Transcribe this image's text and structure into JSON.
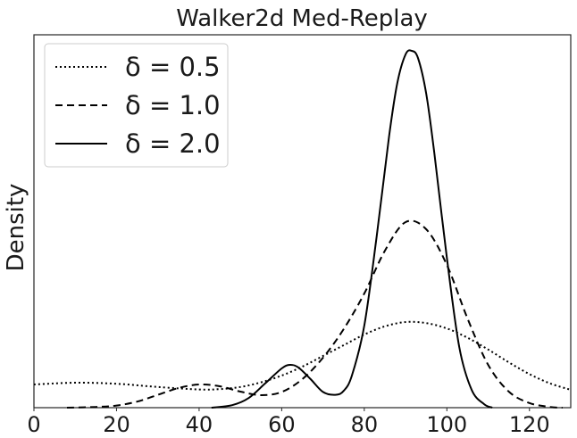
{
  "chart_data": {
    "type": "line",
    "title": "Walker2d Med-Replay",
    "xlabel": "",
    "ylabel": "Density",
    "xlim": [
      0,
      130
    ],
    "ylim": [
      0,
      1.0
    ],
    "xticks": [
      0,
      20,
      40,
      60,
      80,
      100,
      120
    ],
    "grid": false,
    "legend_position": "top-left",
    "colors": {
      "line": "#000000",
      "frame": "#262626",
      "legend_border": "#cccccc"
    },
    "series": [
      {
        "name": "δ = 0.5",
        "style": "dotted",
        "x": [
          0,
          10,
          20,
          30,
          40,
          45,
          50,
          55,
          60,
          65,
          70,
          75,
          80,
          85,
          90,
          95,
          100,
          105,
          110,
          115,
          120,
          125,
          130
        ],
        "y": [
          0.065,
          0.07,
          0.067,
          0.058,
          0.051,
          0.052,
          0.058,
          0.071,
          0.09,
          0.115,
          0.145,
          0.175,
          0.205,
          0.228,
          0.24,
          0.237,
          0.222,
          0.196,
          0.163,
          0.127,
          0.094,
          0.068,
          0.05
        ]
      },
      {
        "name": "δ = 1.0",
        "style": "dashed",
        "x": [
          8,
          15,
          20,
          25,
          30,
          35,
          40,
          45,
          50,
          55,
          60,
          65,
          70,
          75,
          80,
          85,
          90,
          95,
          100,
          105,
          110,
          115,
          120,
          125,
          128
        ],
        "y": [
          0.0,
          0.002,
          0.006,
          0.017,
          0.036,
          0.055,
          0.065,
          0.06,
          0.045,
          0.035,
          0.044,
          0.08,
          0.14,
          0.22,
          0.32,
          0.44,
          0.52,
          0.5,
          0.4,
          0.25,
          0.12,
          0.045,
          0.013,
          0.002,
          0.0
        ]
      },
      {
        "name": "δ = 2.0",
        "style": "solid",
        "x": [
          43,
          48,
          52,
          56,
          60,
          62,
          64,
          67,
          70,
          73,
          75,
          77,
          80,
          83,
          86,
          88,
          90,
          91.5,
          93,
          95,
          97,
          100,
          103,
          106,
          109,
          111
        ],
        "y": [
          0.0,
          0.007,
          0.027,
          0.068,
          0.11,
          0.12,
          0.113,
          0.08,
          0.044,
          0.036,
          0.047,
          0.09,
          0.23,
          0.48,
          0.76,
          0.91,
          0.99,
          1.0,
          0.98,
          0.88,
          0.71,
          0.42,
          0.17,
          0.05,
          0.01,
          0.0
        ]
      }
    ]
  }
}
